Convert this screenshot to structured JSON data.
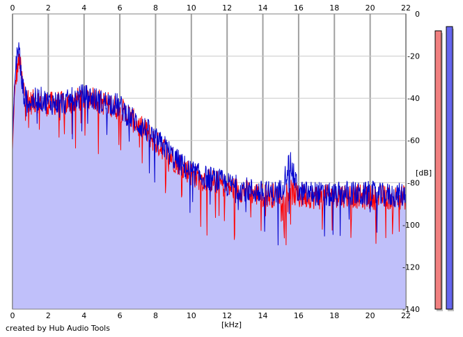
{
  "credit": "created by Hub Audio Tools",
  "chart_data": {
    "type": "area",
    "xlabel": "[kHz]",
    "ylabel": "[dB]",
    "xlim": [
      0,
      22
    ],
    "ylim": [
      -140,
      0
    ],
    "x_ticks": [
      "0",
      "2",
      "4",
      "6",
      "8",
      "10",
      "12",
      "14",
      "16",
      "18",
      "20",
      "22"
    ],
    "y_ticks": [
      "0",
      "-20",
      "-40",
      "-60",
      "-80",
      "-100",
      "-120",
      "-140"
    ],
    "grid": true,
    "fill_color": "#c0c0fa",
    "series": [
      {
        "channel": "left",
        "color": "#ff0000",
        "x": [
          0,
          0.1,
          0.2,
          0.3,
          0.4,
          0.5,
          0.7,
          1,
          1.5,
          2,
          2.5,
          3,
          3.5,
          4,
          4.5,
          5,
          5.5,
          6,
          6.5,
          7,
          7.5,
          8,
          8.5,
          9,
          9.5,
          10,
          10.5,
          11,
          11.5,
          12,
          12.5,
          13,
          13.5,
          14,
          14.5,
          15,
          15.5,
          16,
          16.5,
          17,
          17.5,
          18,
          18.5,
          19,
          19.5,
          20,
          20.5,
          21,
          21.5,
          22
        ],
        "values": [
          -65,
          -40,
          -30,
          -25,
          -22,
          -30,
          -38,
          -42,
          -41,
          -43,
          -42,
          -43,
          -41,
          -40,
          -39,
          -42,
          -43,
          -45,
          -48,
          -53,
          -56,
          -61,
          -64,
          -69,
          -72,
          -76,
          -78,
          -79,
          -80,
          -82,
          -83,
          -84,
          -85,
          -86,
          -86,
          -86,
          -84,
          -87,
          -86,
          -87,
          -87,
          -86,
          -86,
          -86,
          -87,
          -87,
          -87,
          -87,
          -87,
          -87
        ]
      },
      {
        "channel": "right",
        "color": "#0000cd",
        "x": [
          0,
          0.1,
          0.2,
          0.3,
          0.4,
          0.5,
          0.7,
          1,
          1.5,
          2,
          2.5,
          3,
          3.5,
          4,
          4.5,
          5,
          5.5,
          6,
          6.5,
          7,
          7.5,
          8,
          8.5,
          9,
          9.5,
          10,
          10.5,
          11,
          11.5,
          12,
          12.5,
          13,
          13.5,
          14,
          14.5,
          15,
          15.5,
          16,
          16.5,
          17,
          17.5,
          18,
          18.5,
          19,
          19.5,
          20,
          20.5,
          21,
          21.5,
          22
        ],
        "values": [
          -60,
          -35,
          -24,
          -15,
          -20,
          -32,
          -40,
          -42,
          -40,
          -42,
          -42,
          -42,
          -40,
          -39,
          -40,
          -42,
          -42,
          -44,
          -48,
          -52,
          -55,
          -60,
          -63,
          -68,
          -72,
          -75,
          -77,
          -78,
          -79,
          -81,
          -82,
          -83,
          -84,
          -85,
          -85,
          -84,
          -70,
          -85,
          -85,
          -85,
          -86,
          -86,
          -85,
          -85,
          -86,
          -85,
          -86,
          -86,
          -86,
          -86
        ]
      }
    ],
    "level_meters": [
      {
        "channel": "left",
        "color": "#f08080",
        "value_db": -8
      },
      {
        "channel": "right",
        "color": "#6666ee",
        "value_db": -6
      }
    ]
  }
}
